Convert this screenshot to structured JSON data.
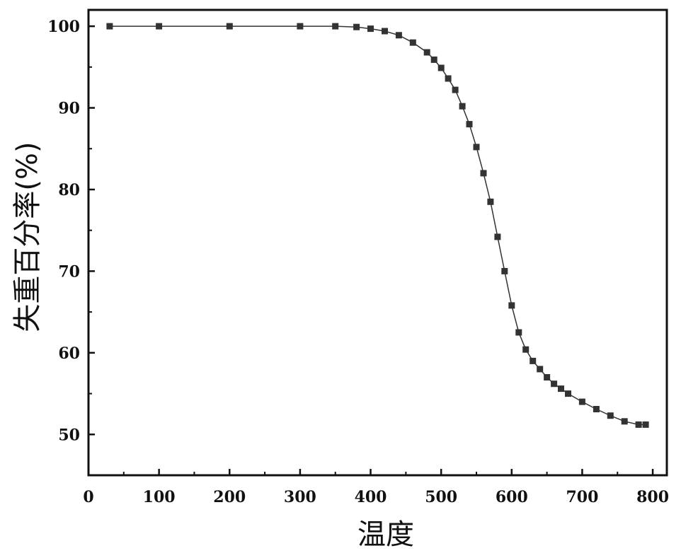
{
  "chart_data": {
    "type": "scatter",
    "title": "",
    "xlabel": "温度",
    "ylabel": "失重百分率(%)",
    "xlim": [
      0,
      820
    ],
    "ylim": [
      45,
      102
    ],
    "xticks": [
      0,
      100,
      200,
      300,
      400,
      500,
      600,
      700,
      800
    ],
    "yticks": [
      50,
      60,
      70,
      80,
      90,
      100
    ],
    "grid": false,
    "legend": "none",
    "marker_color": "#333333",
    "series": [
      {
        "x": [
          30,
          100,
          200,
          300,
          350,
          380,
          400,
          420,
          440,
          460,
          480,
          490,
          500,
          510,
          520,
          530,
          540,
          550,
          560,
          570,
          580,
          590,
          600,
          610,
          620,
          630,
          640,
          650,
          660,
          670,
          680,
          700,
          720,
          740,
          760,
          780,
          790
        ],
        "y": [
          100,
          100,
          100,
          100,
          100,
          99.9,
          99.7,
          99.4,
          98.9,
          98,
          96.8,
          95.9,
          94.9,
          93.6,
          92.2,
          90.2,
          88,
          85.2,
          82,
          78.5,
          74.2,
          70,
          65.8,
          62.5,
          60.4,
          59,
          58,
          57,
          56.2,
          55.6,
          55,
          54,
          53.1,
          52.3,
          51.6,
          51.2,
          51.2
        ]
      }
    ]
  }
}
